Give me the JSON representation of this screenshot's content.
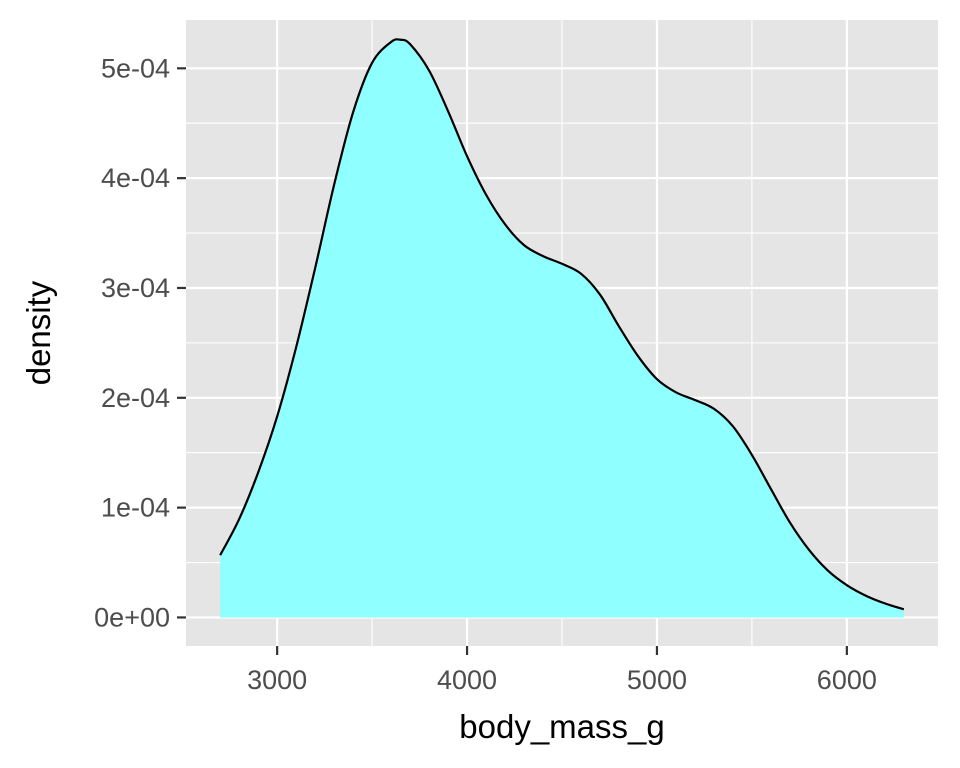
{
  "chart_data": {
    "type": "area",
    "title": "",
    "xlabel": "body_mass_g",
    "ylabel": "density",
    "xlim": [
      2520,
      6480
    ],
    "ylim": [
      -2.6e-05,
      0.000544
    ],
    "x_ticks": [
      {
        "value": 3000,
        "label": "3000"
      },
      {
        "value": 4000,
        "label": "4000"
      },
      {
        "value": 5000,
        "label": "5000"
      },
      {
        "value": 6000,
        "label": "6000"
      }
    ],
    "y_ticks": [
      {
        "value": 0,
        "label": "0e+00"
      },
      {
        "value": 0.0001,
        "label": "1e-04"
      },
      {
        "value": 0.0002,
        "label": "2e-04"
      },
      {
        "value": 0.0003,
        "label": "3e-04"
      },
      {
        "value": 0.0004,
        "label": "4e-04"
      },
      {
        "value": 0.0005,
        "label": "5e-04"
      }
    ],
    "grid": true,
    "legend": "none",
    "colors": {
      "fill": "#8fffff",
      "outline": "#000000",
      "panel_background": "#e5e5e5",
      "grid": "#ffffff"
    },
    "x": [
      2700,
      2800,
      2900,
      3000,
      3100,
      3200,
      3300,
      3400,
      3500,
      3600,
      3650,
      3700,
      3800,
      3900,
      4000,
      4100,
      4200,
      4300,
      4400,
      4500,
      4600,
      4700,
      4800,
      4900,
      5000,
      5100,
      5200,
      5300,
      5400,
      5500,
      5600,
      5700,
      5800,
      5900,
      6000,
      6100,
      6200,
      6300
    ],
    "y": [
      5.67e-05,
      8.96e-05,
      0.000132,
      0.000183,
      0.000246,
      0.000318,
      0.000394,
      0.00046,
      0.000505,
      0.000524,
      0.000526,
      0.000522,
      0.000498,
      0.000461,
      0.00042,
      0.000385,
      0.000358,
      0.000339,
      0.000329,
      0.000322,
      0.000313,
      0.000294,
      0.000265,
      0.000238,
      0.000217,
      0.000205,
      0.000198,
      0.00019,
      0.000174,
      0.000148,
      0.000117,
      8.65e-05,
      6.17e-05,
      4.27e-05,
      2.94e-05,
      1.98e-05,
      1.28e-05,
      7.4e-06
    ]
  }
}
